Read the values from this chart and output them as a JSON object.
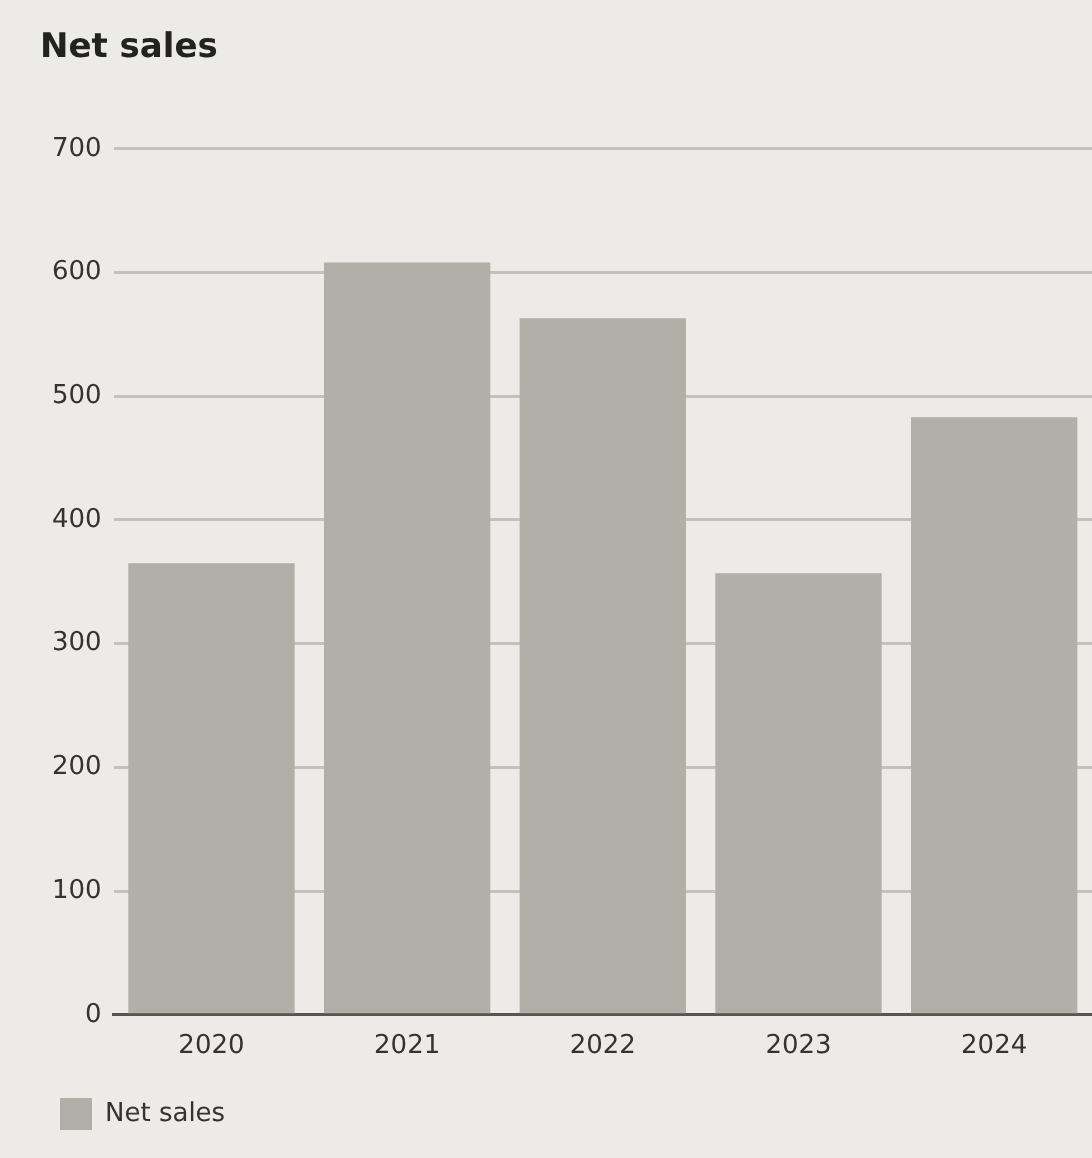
{
  "chart_data": {
    "type": "bar",
    "title": "Net sales",
    "categories": [
      "2020",
      "2021",
      "2022",
      "2023",
      "2024"
    ],
    "series": [
      {
        "name": "Net sales",
        "color": "#b2aea8",
        "values": [
          365,
          608,
          563,
          357,
          483
        ]
      }
    ],
    "ylim": [
      0,
      700
    ],
    "yticks": [
      0,
      100,
      200,
      300,
      400,
      500,
      600,
      700
    ],
    "grid": "y",
    "legend": "bottom left"
  }
}
